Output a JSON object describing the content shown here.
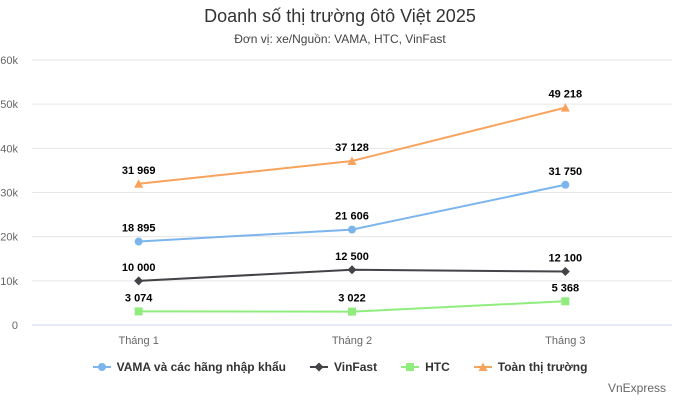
{
  "chart_data": {
    "type": "line",
    "title": "Doanh số thị trường ôtô Việt 2025",
    "subtitle": "Đơn vị: xe/Nguồn: VAMA, HTC, VinFast",
    "categories": [
      "Tháng 1",
      "Tháng 2",
      "Tháng 3"
    ],
    "ylim": [
      0,
      60000
    ],
    "y_ticks": [
      0,
      10000,
      20000,
      30000,
      40000,
      50000,
      60000
    ],
    "y_tick_labels": [
      "0",
      "10k",
      "20k",
      "30k",
      "40k",
      "50k",
      "60k"
    ],
    "grid": true,
    "legend_position": "bottom",
    "series": [
      {
        "name": "VAMA và các hãng nhập khẩu",
        "values": [
          18895,
          21606,
          31750
        ],
        "value_labels": [
          "18 895",
          "21 606",
          "31 750"
        ],
        "color": "#7cb5ec",
        "marker": "circle"
      },
      {
        "name": "VinFast",
        "values": [
          10000,
          12500,
          12100
        ],
        "value_labels": [
          "10 000",
          "12 500",
          "12 100"
        ],
        "color": "#434348",
        "marker": "diamond"
      },
      {
        "name": "HTC",
        "values": [
          3074,
          3022,
          5368
        ],
        "value_labels": [
          "3 074",
          "3 022",
          "5 368"
        ],
        "color": "#90ed7d",
        "marker": "square"
      },
      {
        "name": "Toàn thị trường",
        "values": [
          31969,
          37128,
          49218
        ],
        "value_labels": [
          "31 969",
          "37 128",
          "49 218"
        ],
        "color": "#f7a35c",
        "marker": "triangle"
      }
    ]
  },
  "credit": "VnExpress"
}
